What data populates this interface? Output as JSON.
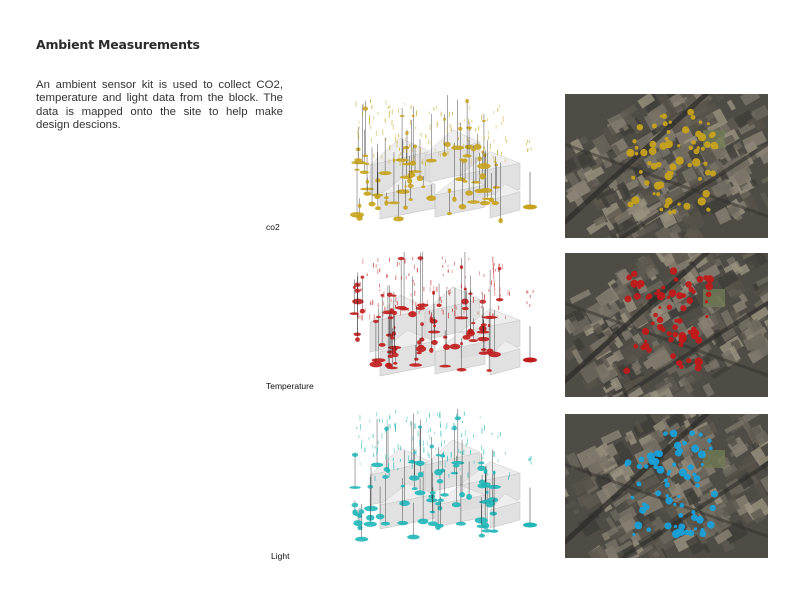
{
  "page": {
    "title": "Ambient Measurements",
    "intro": "An ambient sensor kit is used to collect CO2, temperature and light data from the block. The data is mapped onto the site to help make design descions."
  },
  "panels": [
    {
      "label": "co2",
      "color": "#c7a21c"
    },
    {
      "label": "Temperature",
      "color": "#c01a1a"
    },
    {
      "label": "Light",
      "color": "#1fb6b8"
    }
  ],
  "colors": {
    "satellite_base": "#4e4c45",
    "block_grey": "#dcdcdc"
  }
}
